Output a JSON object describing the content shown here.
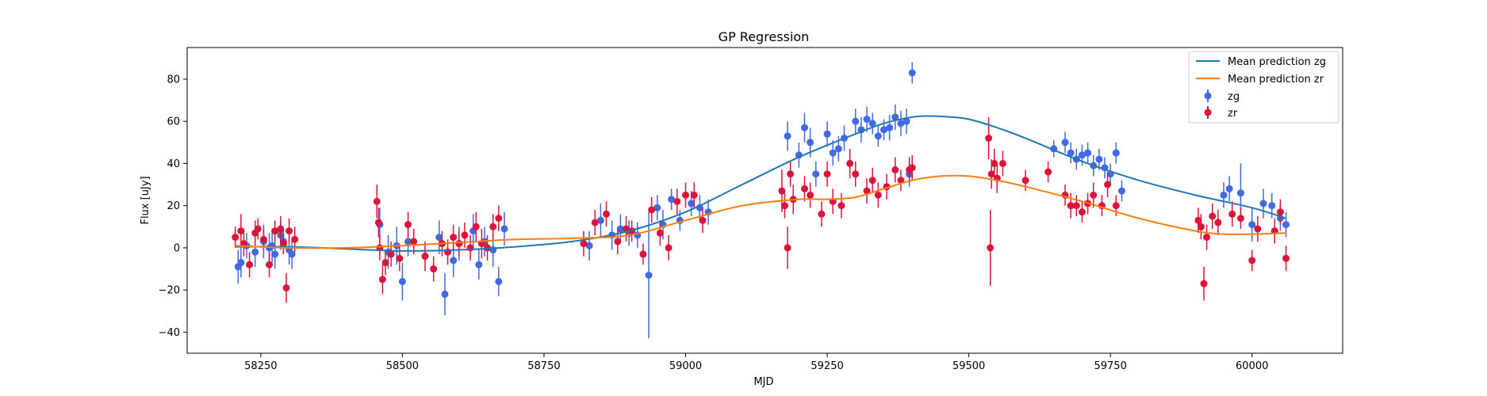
{
  "chart_data": {
    "type": "scatter",
    "title": "GP Regression",
    "xlabel": "MJD",
    "ylabel": "Flux [uJy]",
    "xlim": [
      58120,
      60160
    ],
    "ylim": [
      -50,
      95
    ],
    "xticks": [
      58250,
      58500,
      58750,
      59000,
      59250,
      59500,
      59750,
      60000
    ],
    "yticks": [
      -40,
      -20,
      0,
      20,
      40,
      60,
      80
    ],
    "grid": false,
    "legend_position": "top-right",
    "colors": {
      "zg_line": "#1f77b4",
      "zr_line": "#ff7f0e",
      "zg_points": "#4169e1",
      "zr_points": "#dc143c"
    },
    "lines": [
      {
        "name": "Mean prediction zg",
        "x": [
          58205,
          58300,
          58400,
          58500,
          58600,
          58700,
          58800,
          58900,
          59000,
          59100,
          59200,
          59300,
          59350,
          59400,
          59430,
          59470,
          59500,
          59550,
          59600,
          59700,
          59800,
          59900,
          60000,
          60060
        ],
        "y": [
          0.5,
          0.5,
          -0.5,
          -1.5,
          -1,
          0.5,
          3,
          8,
          17,
          30,
          43,
          54,
          59,
          62,
          62.5,
          62,
          61,
          57,
          52,
          41,
          32,
          25,
          19,
          14
        ]
      },
      {
        "name": "Mean prediction zr",
        "x": [
          58205,
          58300,
          58400,
          58500,
          58600,
          58700,
          58800,
          58900,
          59000,
          59100,
          59200,
          59250,
          59300,
          59350,
          59400,
          59450,
          59500,
          59550,
          59600,
          59700,
          59800,
          59900,
          59950,
          60000,
          60060
        ],
        "y": [
          1,
          0,
          0,
          1,
          2.5,
          4,
          4.5,
          6,
          13,
          20,
          23,
          23,
          24,
          28,
          32,
          34,
          34,
          32,
          29,
          22,
          14,
          8,
          6.5,
          6.5,
          7
        ]
      }
    ],
    "series": [
      {
        "name": "zg",
        "x": [
          58210,
          58215,
          58225,
          58240,
          58255,
          58265,
          58270,
          58275,
          58285,
          58290,
          58300,
          58305,
          58460,
          58475,
          58490,
          58500,
          58510,
          58565,
          58575,
          58590,
          58600,
          58625,
          58635,
          58645,
          58660,
          58670,
          58680,
          58830,
          58850,
          58870,
          58885,
          58900,
          58915,
          58935,
          58950,
          58960,
          58975,
          58990,
          59010,
          59025,
          59040,
          59180,
          59200,
          59210,
          59220,
          59230,
          59250,
          59260,
          59270,
          59280,
          59300,
          59310,
          59320,
          59330,
          59340,
          59350,
          59360,
          59370,
          59380,
          59390,
          59395,
          59400,
          59650,
          59670,
          59680,
          59690,
          59700,
          59710,
          59720,
          59730,
          59740,
          59750,
          59760,
          59770,
          59950,
          59960,
          59980,
          60000,
          60020,
          60035,
          60050,
          60060
        ],
        "y": [
          -9,
          -7,
          1,
          -2,
          3,
          0,
          1,
          -3,
          6,
          3,
          -1,
          -3,
          11,
          -2,
          1,
          -16,
          3,
          5,
          -22,
          -6,
          2,
          8,
          -8,
          3,
          -1,
          -16,
          9,
          1,
          13,
          6,
          9,
          7,
          6,
          -13,
          19,
          11,
          23,
          13,
          21,
          19,
          17,
          53,
          44,
          57,
          50,
          35,
          54,
          45,
          47,
          52,
          60,
          56,
          61,
          59,
          53,
          56,
          57,
          62,
          59,
          60,
          35,
          83,
          47,
          50,
          45,
          42,
          44,
          45,
          39,
          42,
          38,
          35,
          45,
          27,
          25,
          28,
          26,
          11,
          21,
          20,
          14,
          11
        ],
        "err": [
          8,
          7,
          6,
          7,
          8,
          7,
          8,
          7,
          7,
          6,
          7,
          7,
          8,
          8,
          9,
          9,
          7,
          8,
          10,
          8,
          8,
          8,
          7,
          7,
          8,
          7,
          8,
          7,
          8,
          7,
          7,
          6,
          6,
          30,
          6,
          7,
          5,
          5,
          6,
          6,
          6,
          7,
          6,
          7,
          7,
          6,
          6,
          6,
          6,
          6,
          6,
          6,
          6,
          5,
          5,
          5,
          6,
          6,
          6,
          6,
          6,
          5,
          4,
          5,
          5,
          5,
          5,
          5,
          5,
          5,
          5,
          5,
          5,
          5,
          6,
          6,
          14,
          8,
          7,
          6,
          6,
          6
        ]
      },
      {
        "name": "zr",
        "x": [
          58205,
          58215,
          58220,
          58230,
          58240,
          58245,
          58255,
          58265,
          58275,
          58285,
          58290,
          58295,
          58300,
          58310,
          58455,
          58458,
          58460,
          58465,
          58470,
          58480,
          58495,
          58510,
          58520,
          58540,
          58555,
          58570,
          58580,
          58590,
          58600,
          58610,
          58620,
          58630,
          58640,
          58650,
          58660,
          58670,
          58820,
          58840,
          58860,
          58880,
          58895,
          58905,
          58925,
          58940,
          58955,
          58970,
          58985,
          59000,
          59015,
          59030,
          59170,
          59175,
          59180,
          59185,
          59190,
          59210,
          59220,
          59240,
          59250,
          59260,
          59275,
          59290,
          59300,
          59320,
          59330,
          59340,
          59355,
          59370,
          59380,
          59395,
          59400,
          59535,
          59538,
          59540,
          59545,
          59550,
          59560,
          59600,
          59640,
          59670,
          59680,
          59690,
          59700,
          59710,
          59720,
          59735,
          59745,
          59760,
          59905,
          59910,
          59915,
          59920,
          59930,
          59940,
          59965,
          59980,
          60000,
          60010,
          60040,
          60050,
          60060
        ],
        "y": [
          5,
          8,
          2,
          -8,
          7,
          9,
          4,
          -8,
          8,
          9,
          2,
          -19,
          8,
          4,
          22,
          12,
          0,
          -15,
          -7,
          -3,
          -5,
          11,
          3,
          -4,
          -10,
          2,
          -2,
          5,
          2,
          6,
          0,
          10,
          2,
          0,
          10,
          14,
          2,
          12,
          16,
          3,
          9,
          8,
          -3,
          18,
          7,
          0,
          22,
          25,
          25,
          13,
          27,
          20,
          0,
          35,
          23,
          28,
          25,
          16,
          35,
          22,
          20,
          40,
          35,
          27,
          32,
          25,
          29,
          37,
          32,
          37,
          38,
          52,
          0,
          35,
          40,
          33,
          40,
          32,
          36,
          25,
          20,
          20,
          17,
          21,
          25,
          20,
          30,
          20,
          13,
          10,
          -17,
          5,
          15,
          12,
          16,
          14,
          -6,
          9,
          8,
          17,
          -5
        ],
        "err": [
          5,
          8,
          6,
          6,
          6,
          5,
          5,
          6,
          5,
          6,
          5,
          7,
          6,
          6,
          8,
          7,
          6,
          7,
          6,
          6,
          6,
          6,
          6,
          7,
          6,
          6,
          6,
          6,
          6,
          6,
          6,
          7,
          7,
          6,
          6,
          6,
          6,
          6,
          6,
          6,
          6,
          5,
          5,
          6,
          6,
          6,
          6,
          6,
          6,
          6,
          10,
          6,
          10,
          6,
          7,
          6,
          6,
          6,
          6,
          6,
          6,
          7,
          6,
          6,
          6,
          6,
          6,
          6,
          5,
          6,
          6,
          10,
          18,
          7,
          7,
          7,
          6,
          5,
          5,
          5,
          6,
          5,
          5,
          5,
          6,
          5,
          6,
          5,
          6,
          6,
          8,
          6,
          6,
          6,
          6,
          5,
          5,
          6,
          6,
          6,
          6
        ]
      }
    ]
  }
}
